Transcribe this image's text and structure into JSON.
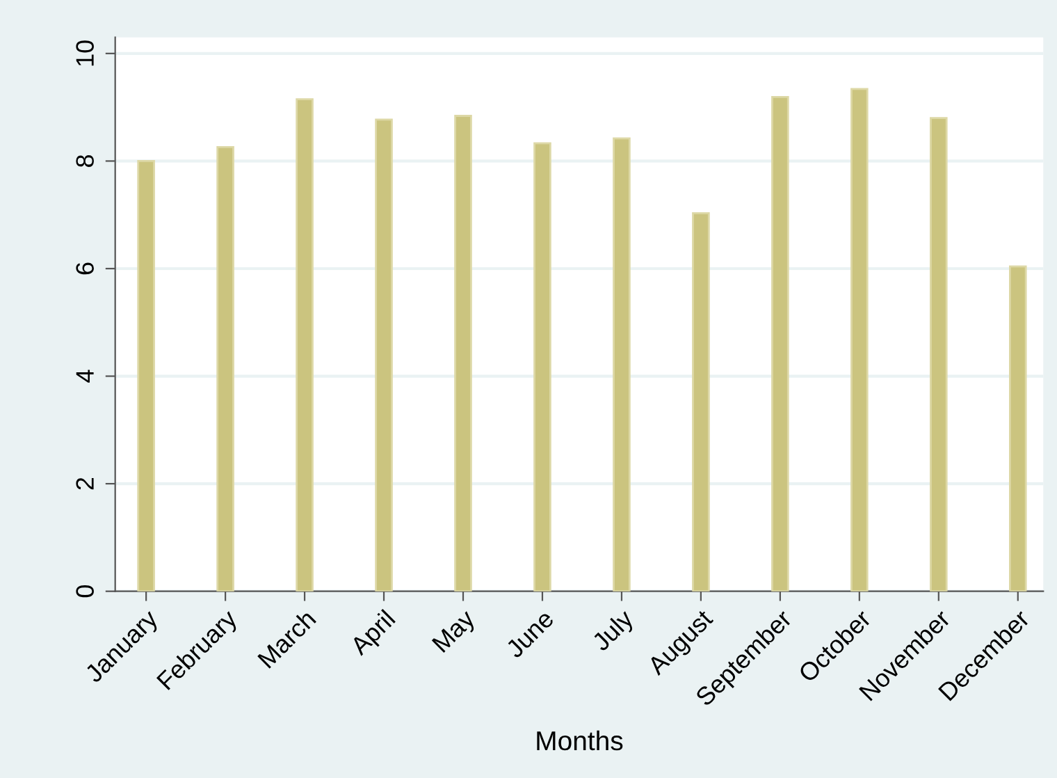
{
  "chart_data": {
    "type": "bar",
    "xlabel": "Months",
    "categories": [
      "January",
      "February",
      "March",
      "April",
      "May",
      "June",
      "July",
      "August",
      "September",
      "October",
      "November",
      "December"
    ],
    "values": [
      8.0,
      8.26,
      9.15,
      8.77,
      8.84,
      8.33,
      8.42,
      7.03,
      9.19,
      9.34,
      8.8,
      6.04
    ],
    "color": "#cbc47f",
    "ylim": [
      0,
      10.3
    ],
    "yticks": [
      0,
      2,
      4,
      6,
      8,
      10
    ],
    "grid": "y",
    "legend": false
  }
}
